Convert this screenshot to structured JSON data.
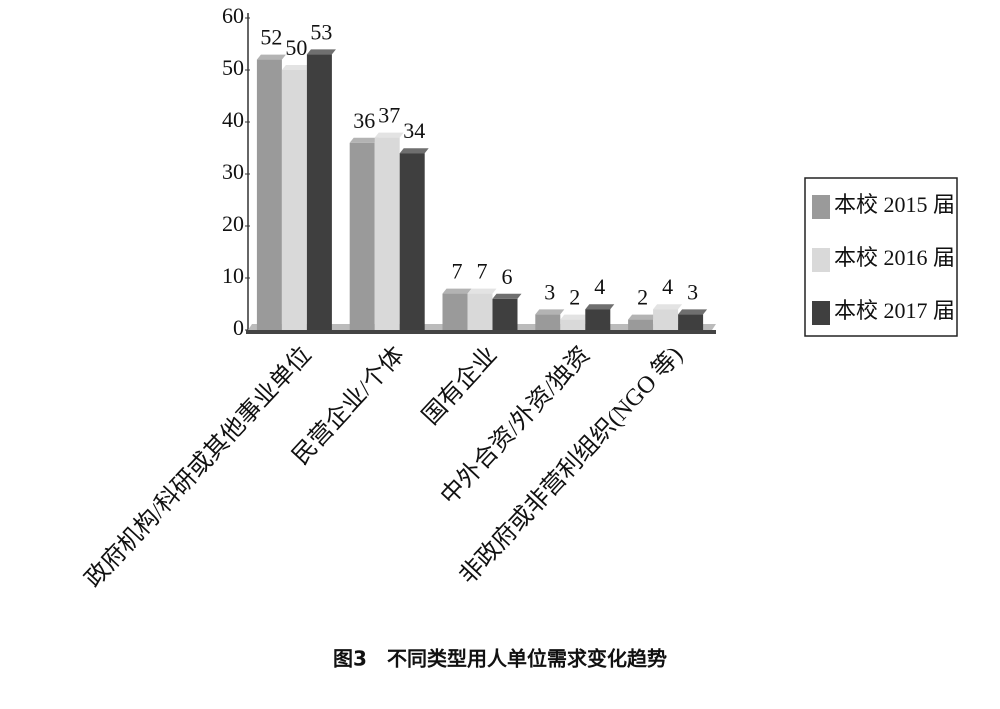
{
  "chart_data": {
    "type": "bar",
    "title": "图3　不同类型用人单位需求变化趋势",
    "categories": [
      "政府机构/科研或其他事业单位",
      "民营企业/个体",
      "国有企业",
      "中外合资/外资/独资",
      "非政府或非营利组织(NGO 等)"
    ],
    "series": [
      {
        "name": "本校 2015 届",
        "color": "#9a9a9a",
        "values": [
          52,
          36,
          7,
          3,
          2
        ]
      },
      {
        "name": "本校 2016 届",
        "color": "#d9d9d9",
        "values": [
          50,
          37,
          7,
          2,
          4
        ]
      },
      {
        "name": "本校 2017 届",
        "color": "#3f3f3f",
        "values": [
          53,
          34,
          6,
          4,
          3
        ]
      }
    ],
    "ylim": [
      0,
      60
    ],
    "yticks": [
      0,
      10,
      20,
      30,
      40,
      50,
      60
    ],
    "grid": false,
    "legend": "right"
  }
}
